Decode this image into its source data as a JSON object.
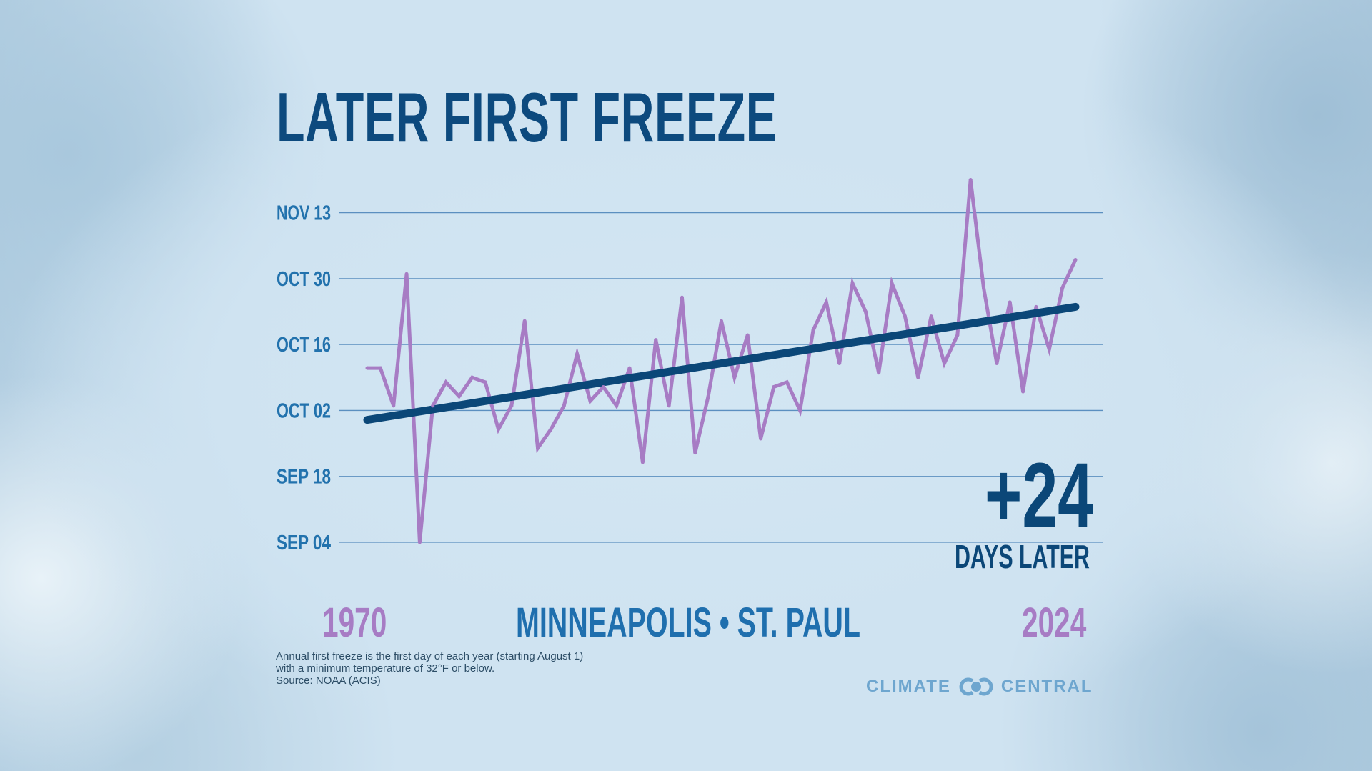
{
  "title": "LATER FIRST FREEZE",
  "chart_data": {
    "type": "line",
    "title": "LATER FIRST FREEZE",
    "yticks": [
      "SEP 04",
      "SEP 18",
      "OCT 02",
      "OCT 16",
      "OCT 30",
      "NOV 13"
    ],
    "ylim": [
      "Sep 04",
      "Nov 13"
    ],
    "grid": true,
    "x_start_label": "1970",
    "x_end_label": "2024",
    "x": [
      1970,
      1971,
      1972,
      1973,
      1974,
      1975,
      1976,
      1977,
      1978,
      1979,
      1980,
      1981,
      1982,
      1983,
      1984,
      1985,
      1986,
      1987,
      1988,
      1989,
      1990,
      1991,
      1992,
      1993,
      1994,
      1995,
      1996,
      1997,
      1998,
      1999,
      2000,
      2001,
      2002,
      2003,
      2004,
      2005,
      2006,
      2007,
      2008,
      2009,
      2010,
      2011,
      2012,
      2013,
      2014,
      2015,
      2016,
      2017,
      2018,
      2019,
      2020,
      2021,
      2022,
      2023,
      2024
    ],
    "series": [
      {
        "values": [
          "Oct 11",
          "Oct 11",
          "Oct 03",
          "Oct 31",
          "Sep 04",
          "Oct 03",
          "Oct 08",
          "Oct 05",
          "Oct 09",
          "Oct 08",
          "Sep 28",
          "Oct 03",
          "Oct 21",
          "Sep 24",
          "Sep 28",
          "Oct 03",
          "Oct 14",
          "Oct 04",
          "Oct 07",
          "Oct 03",
          "Oct 11",
          "Sep 21",
          "Oct 17",
          "Oct 03",
          "Oct 26",
          "Sep 23",
          "Oct 05",
          "Oct 21",
          "Oct 09",
          "Oct 18",
          "Sep 26",
          "Oct 07",
          "Oct 08",
          "Oct 02",
          "Oct 19",
          "Oct 25",
          "Oct 12",
          "Oct 29",
          "Oct 23",
          "Oct 10",
          "Oct 29",
          "Oct 22",
          "Oct 09",
          "Oct 22",
          "Oct 12",
          "Oct 18",
          "Nov 20",
          "Oct 28",
          "Oct 12",
          "Oct 25",
          "Oct 06",
          "Oct 24",
          "Oct 15",
          "Oct 28",
          "Nov 03"
        ],
        "color": "#a77cc4"
      },
      {
        "type": "trend",
        "values": [
          "Sep 30",
          "Oct 24"
        ],
        "x": [
          1970,
          2024
        ],
        "color": "#0b4778"
      }
    ],
    "annotation": {
      "value": "+24",
      "label": "DAYS LATER"
    },
    "location": "MINNEAPOLIS • ST. PAUL"
  },
  "footnote": [
    "Annual first freeze is the first day of each year (starting August 1)",
    "with a minimum temperature of 32°F or below.",
    "Source: NOAA (ACIS)"
  ],
  "logo": {
    "left": "CLIMATE",
    "right": "CENTRAL",
    "icon": "climate-central-rings-icon"
  },
  "colors": {
    "title": "#0d4a7e",
    "axis": "#2272ad",
    "grid": "#5b8fc0",
    "line": "#a77cc4",
    "trend": "#0b4778",
    "city": "#1f6fae",
    "logo": "#6ea6cf"
  }
}
